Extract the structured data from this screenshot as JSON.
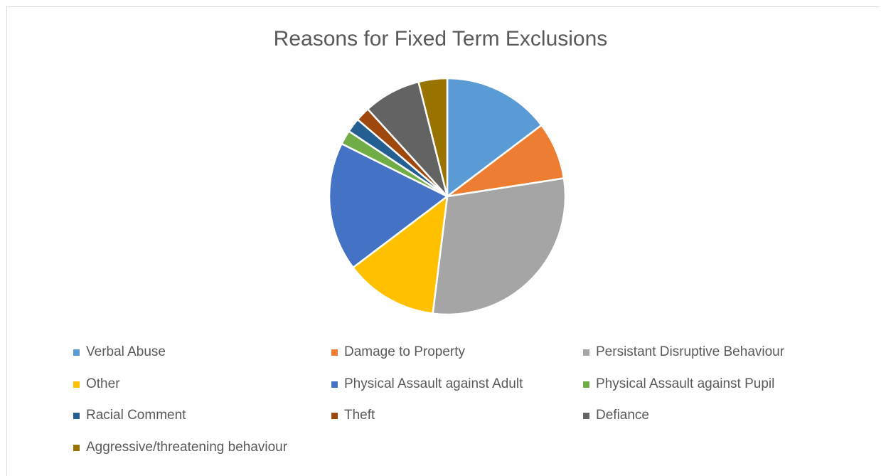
{
  "chart_data": {
    "type": "pie",
    "title": "Reasons for Fixed Term Exclusions",
    "legend_position": "bottom",
    "slices": [
      {
        "label": "Verbal Abuse",
        "value": 15,
        "color": "#5b9bd5"
      },
      {
        "label": "Damage to Property",
        "value": 8,
        "color": "#ed7d31"
      },
      {
        "label": "Persistant Disruptive Behaviour",
        "value": 30,
        "color": "#a5a5a5"
      },
      {
        "label": "Other",
        "value": 13,
        "color": "#ffc000"
      },
      {
        "label": "Physical Assault against Adult",
        "value": 18,
        "color": "#4472c4"
      },
      {
        "label": "Physical Assault against Pupil",
        "value": 2,
        "color": "#70ad47"
      },
      {
        "label": "Racial Comment",
        "value": 2,
        "color": "#255e91"
      },
      {
        "label": "Theft",
        "value": 2,
        "color": "#9e480e"
      },
      {
        "label": "Defiance",
        "value": 8,
        "color": "#636363"
      },
      {
        "label": "Aggressive/threatening behaviour",
        "value": 4,
        "color": "#997300"
      }
    ]
  }
}
